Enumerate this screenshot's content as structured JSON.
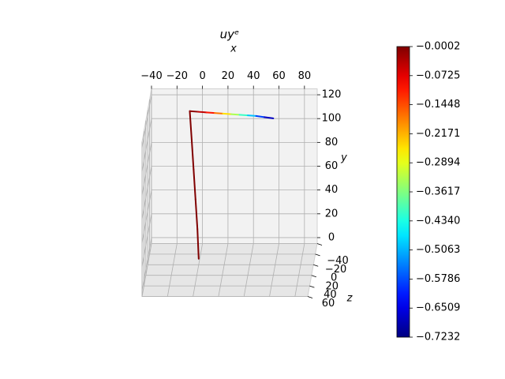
{
  "chart_data": {
    "type": "line3d",
    "title": "uyᵉ",
    "x_label": "x",
    "y_label": "y",
    "z_label": "z",
    "xlim": [
      -40,
      90
    ],
    "ylim": [
      -5,
      125
    ],
    "zlim": [
      -40,
      60
    ],
    "xticks": [
      {
        "value": -40,
        "label": "−40"
      },
      {
        "value": -20,
        "label": "−20"
      },
      0,
      20,
      40,
      60,
      80
    ],
    "yticks": [
      0,
      20,
      40,
      60,
      80,
      100,
      120
    ],
    "zticks": [
      {
        "value": -40,
        "label": "−40"
      },
      {
        "value": -20,
        "label": "−20"
      },
      0,
      20,
      40,
      60
    ],
    "grid": true,
    "colormap": "jet",
    "clim": [
      -0.7232,
      -0.0002
    ],
    "cticks": [
      {
        "value": -0.0002,
        "label": "−0.0002"
      },
      {
        "value": -0.0725,
        "label": "−0.0725"
      },
      {
        "value": -0.1448,
        "label": "−0.1448"
      },
      {
        "value": -0.2171,
        "label": "−0.2171"
      },
      {
        "value": -0.2894,
        "label": "−0.2894"
      },
      {
        "value": -0.3617,
        "label": "−0.3617"
      },
      {
        "value": -0.434,
        "label": "−0.4340"
      },
      {
        "value": -0.5063,
        "label": "−0.5063"
      },
      {
        "value": -0.5786,
        "label": "−0.5786"
      },
      {
        "value": -0.6509,
        "label": "−0.6509"
      },
      {
        "value": -0.7232,
        "label": "−0.7232"
      }
    ],
    "members": [
      {
        "x": [
          0,
          -1,
          -2.5,
          -4,
          -5.5,
          -7
        ],
        "y": [
          0,
          25,
          50,
          75,
          100,
          124
        ],
        "z": [
          0,
          0,
          0,
          0,
          0,
          0
        ],
        "values": [
          -0.0002,
          -0.0002,
          -0.0002,
          -0.0002,
          -0.0002,
          -0.0002
        ]
      },
      {
        "x": [
          -7,
          -0.5,
          6,
          12.5,
          19,
          25.5,
          32,
          38.5,
          45,
          51.5,
          58.5
        ],
        "y": [
          124,
          123.5,
          123,
          122.5,
          122,
          121.5,
          121,
          120.5,
          120,
          119,
          118
        ],
        "z": [
          0,
          0,
          0,
          0,
          0,
          0,
          0,
          0,
          0,
          0,
          0
        ],
        "values": [
          -0.0002,
          -0.02,
          -0.07,
          -0.14,
          -0.21,
          -0.29,
          -0.37,
          -0.45,
          -0.54,
          -0.63,
          -0.7232
        ]
      }
    ]
  }
}
